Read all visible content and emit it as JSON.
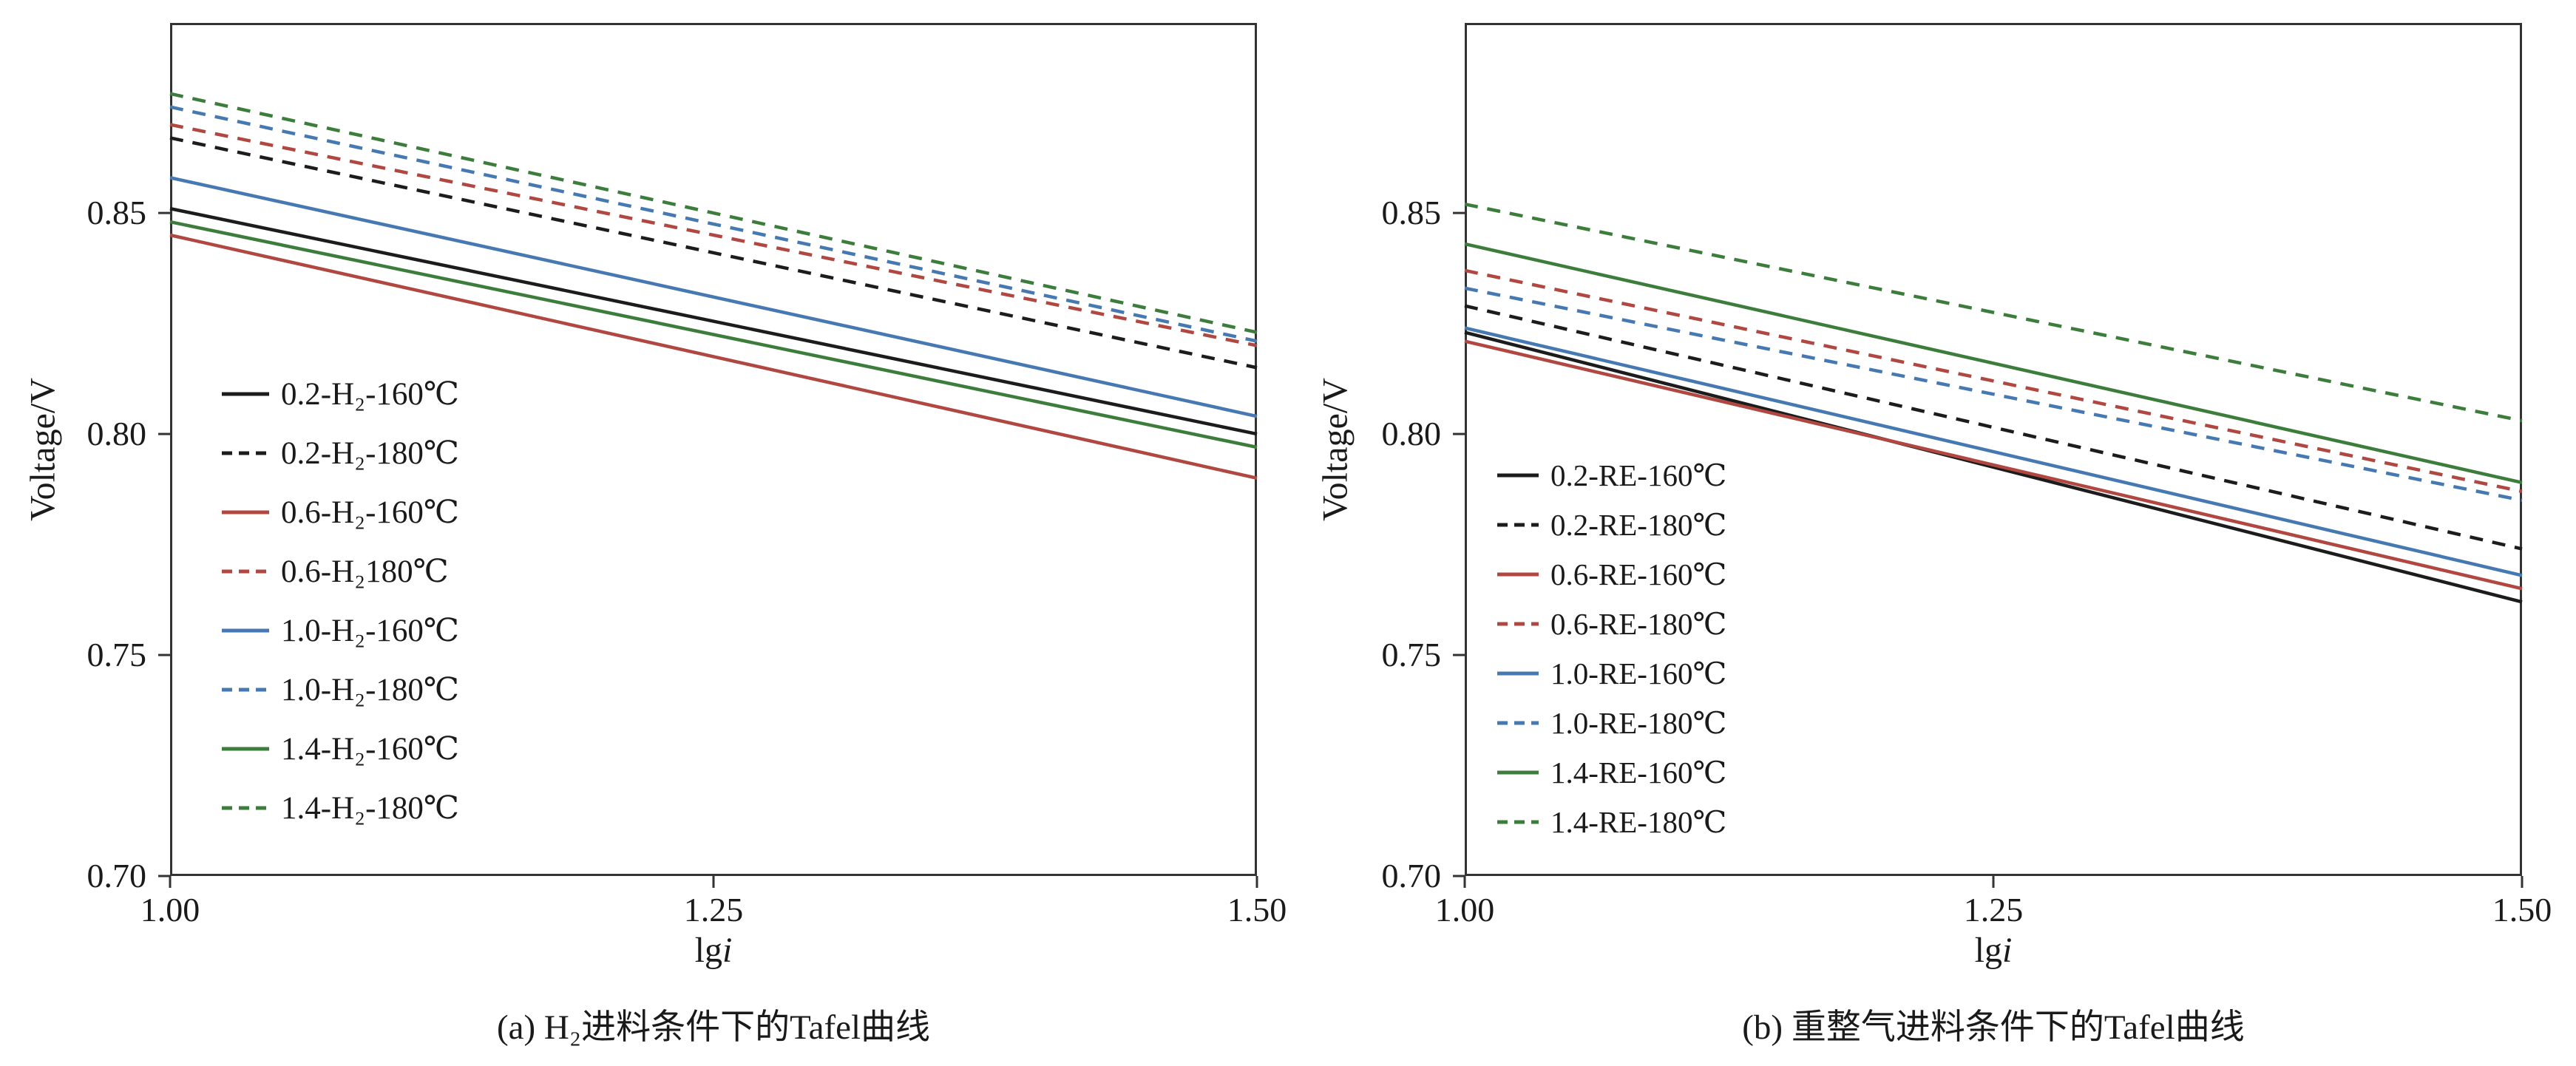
{
  "page": {
    "background": "#ffffff",
    "text_color": "#1a1a1a"
  },
  "chart_data": [
    {
      "type": "line",
      "caption": "(a) H₂进料条件下的Tafel曲线",
      "ylabel": "Voltage/V",
      "xlabel_prefix": "lg",
      "xlabel_italic": "i",
      "xlim": [
        1.0,
        1.5
      ],
      "ylim": [
        0.7,
        0.893
      ],
      "frame_color": "#333333",
      "grid": false,
      "legend_position": "inside-left-middle",
      "xticks": [
        {
          "v": 1.0,
          "label": "1.00"
        },
        {
          "v": 1.25,
          "label": "1.25"
        },
        {
          "v": 1.5,
          "label": "1.50"
        }
      ],
      "yticks": [
        {
          "v": 0.7,
          "label": "0.70"
        },
        {
          "v": 0.75,
          "label": "0.75"
        },
        {
          "v": 0.8,
          "label": "0.80"
        },
        {
          "v": 0.85,
          "label": "0.85"
        }
      ],
      "series": [
        {
          "name": "0.2-H₂-160℃",
          "color": "#1c1c1c",
          "dash": false,
          "x": [
            1.0,
            1.5
          ],
          "y": [
            0.851,
            0.8
          ]
        },
        {
          "name": "0.2-H₂-180℃",
          "color": "#1c1c1c",
          "dash": true,
          "x": [
            1.0,
            1.5
          ],
          "y": [
            0.867,
            0.815
          ]
        },
        {
          "name": "0.6-H₂-160℃",
          "color": "#b04741",
          "dash": false,
          "x": [
            1.0,
            1.5
          ],
          "y": [
            0.845,
            0.79
          ]
        },
        {
          "name": "0.6-H₂180℃",
          "color": "#b04741",
          "dash": true,
          "x": [
            1.0,
            1.5
          ],
          "y": [
            0.87,
            0.82
          ]
        },
        {
          "name": "1.0-H₂-160℃",
          "color": "#4679b2",
          "dash": false,
          "x": [
            1.0,
            1.5
          ],
          "y": [
            0.858,
            0.804
          ]
        },
        {
          "name": "1.0-H₂-180℃",
          "color": "#4679b2",
          "dash": true,
          "x": [
            1.0,
            1.5
          ],
          "y": [
            0.874,
            0.821
          ]
        },
        {
          "name": "1.4-H₂-160℃",
          "color": "#3c7d3c",
          "dash": false,
          "x": [
            1.0,
            1.5
          ],
          "y": [
            0.848,
            0.797
          ]
        },
        {
          "name": "1.4-H₂-180℃",
          "color": "#3c7d3c",
          "dash": true,
          "x": [
            1.0,
            1.5
          ],
          "y": [
            0.877,
            0.823
          ]
        }
      ]
    },
    {
      "type": "line",
      "caption": "(b) 重整气进料条件下的Tafel曲线",
      "ylabel": "Voltage/V",
      "xlabel_prefix": "lg",
      "xlabel_italic": "i",
      "xlim": [
        1.0,
        1.5
      ],
      "ylim": [
        0.7,
        0.893
      ],
      "frame_color": "#333333",
      "grid": false,
      "legend_position": "inside-left-middle",
      "xticks": [
        {
          "v": 1.0,
          "label": "1.00"
        },
        {
          "v": 1.25,
          "label": "1.25"
        },
        {
          "v": 1.5,
          "label": "1.50"
        }
      ],
      "yticks": [
        {
          "v": 0.7,
          "label": "0.70"
        },
        {
          "v": 0.75,
          "label": "0.75"
        },
        {
          "v": 0.8,
          "label": "0.80"
        },
        {
          "v": 0.85,
          "label": "0.85"
        }
      ],
      "series": [
        {
          "name": "0.2-RE-160℃",
          "color": "#1c1c1c",
          "dash": false,
          "x": [
            1.0,
            1.5
          ],
          "y": [
            0.823,
            0.762
          ]
        },
        {
          "name": "0.2-RE-180℃",
          "color": "#1c1c1c",
          "dash": true,
          "x": [
            1.0,
            1.5
          ],
          "y": [
            0.829,
            0.774
          ]
        },
        {
          "name": "0.6-RE-160℃",
          "color": "#b04741",
          "dash": false,
          "x": [
            1.0,
            1.5
          ],
          "y": [
            0.821,
            0.765
          ]
        },
        {
          "name": "0.6-RE-180℃",
          "color": "#b04741",
          "dash": true,
          "x": [
            1.0,
            1.5
          ],
          "y": [
            0.837,
            0.787
          ]
        },
        {
          "name": "1.0-RE-160℃",
          "color": "#4679b2",
          "dash": false,
          "x": [
            1.0,
            1.5
          ],
          "y": [
            0.824,
            0.768
          ]
        },
        {
          "name": "1.0-RE-180℃",
          "color": "#4679b2",
          "dash": true,
          "x": [
            1.0,
            1.5
          ],
          "y": [
            0.833,
            0.785
          ]
        },
        {
          "name": "1.4-RE-160℃",
          "color": "#3c7d3c",
          "dash": false,
          "x": [
            1.0,
            1.5
          ],
          "y": [
            0.843,
            0.789
          ]
        },
        {
          "name": "1.4-RE-180℃",
          "color": "#3c7d3c",
          "dash": true,
          "x": [
            1.0,
            1.5
          ],
          "y": [
            0.852,
            0.803
          ]
        }
      ]
    }
  ]
}
